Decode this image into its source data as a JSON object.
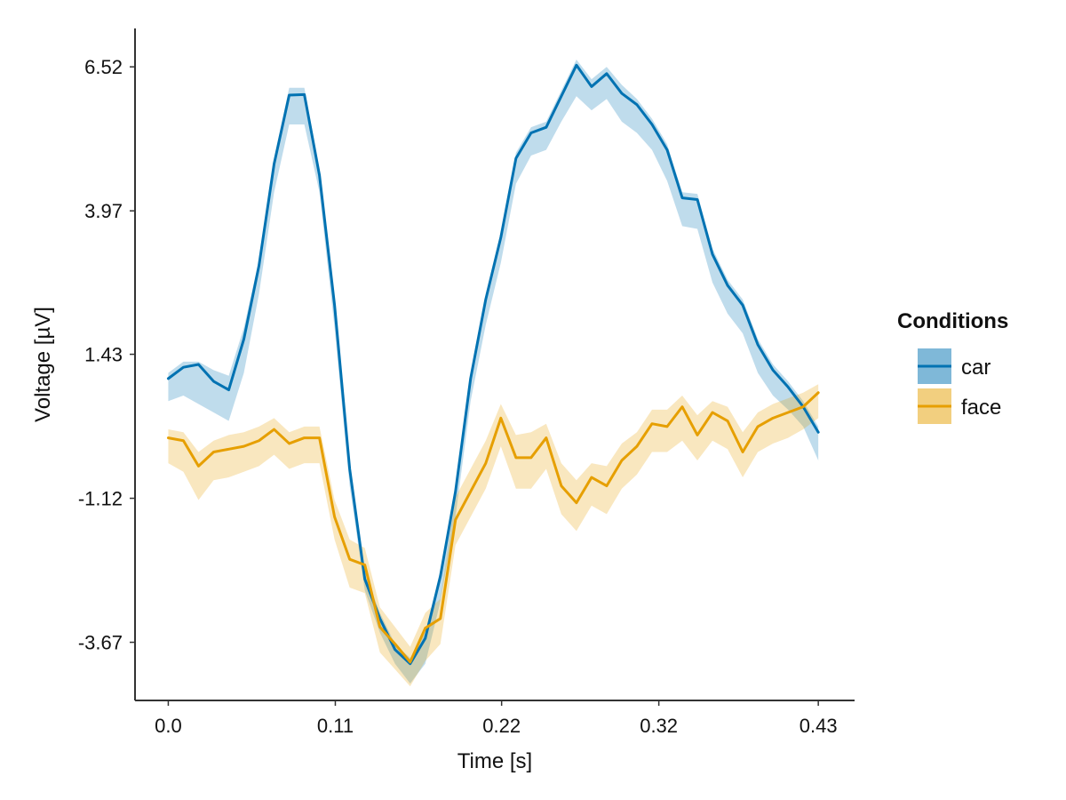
{
  "chart_data": {
    "type": "line",
    "title": "",
    "xlabel": "Time [s]",
    "ylabel": "Voltage [µV]",
    "xlim": [
      -0.022,
      0.454
    ],
    "ylim": [
      -4.7,
      7.2
    ],
    "x_ticks": [
      0.0,
      0.1105,
      0.2205,
      0.3245,
      0.43
    ],
    "x_tick_labels": [
      "0.0",
      "0.11",
      "0.22",
      "0.32",
      "0.43"
    ],
    "y_ticks": [
      6.52,
      3.97,
      1.43,
      -1.12,
      -3.67
    ],
    "y_tick_labels": [
      "6.52",
      "3.97",
      "1.43",
      "-1.12",
      "-3.67"
    ],
    "grid": false,
    "legend": {
      "title": "Conditions",
      "position": "right",
      "entries": [
        "car",
        "face"
      ]
    },
    "x": [
      0.0,
      0.01,
      0.02,
      0.03,
      0.04,
      0.05,
      0.06,
      0.07,
      0.08,
      0.09,
      0.1,
      0.11,
      0.12,
      0.13,
      0.14,
      0.15,
      0.16,
      0.17,
      0.18,
      0.19,
      0.2,
      0.21,
      0.22,
      0.23,
      0.24,
      0.25,
      0.26,
      0.27,
      0.28,
      0.29,
      0.3,
      0.31,
      0.32,
      0.33,
      0.34,
      0.35,
      0.36,
      0.37,
      0.38,
      0.39,
      0.4,
      0.41,
      0.42,
      0.43
    ],
    "series": [
      {
        "name": "car",
        "color": "#0072b2",
        "values": [
          1.0,
          1.2,
          1.25,
          0.95,
          0.8,
          1.7,
          3.0,
          4.8,
          6.02,
          6.03,
          4.6,
          2.3,
          -0.6,
          -2.55,
          -3.25,
          -3.8,
          -4.05,
          -3.6,
          -2.5,
          -1.0,
          1.0,
          2.4,
          3.5,
          4.9,
          5.35,
          5.45,
          6.0,
          6.55,
          6.17,
          6.4,
          6.05,
          5.85,
          5.5,
          5.05,
          4.2,
          4.17,
          3.2,
          2.65,
          2.3,
          1.6,
          1.15,
          0.85,
          0.5,
          0.05
        ],
        "band_upper": [
          1.1,
          1.3,
          1.3,
          1.15,
          1.05,
          1.9,
          3.1,
          4.9,
          6.15,
          6.15,
          4.7,
          2.4,
          -0.5,
          -2.45,
          -3.15,
          -3.7,
          -3.95,
          -3.5,
          -2.4,
          -0.9,
          1.1,
          2.5,
          3.6,
          5.0,
          5.45,
          5.55,
          6.1,
          6.65,
          6.3,
          6.52,
          6.2,
          5.95,
          5.6,
          5.15,
          4.3,
          4.27,
          3.3,
          2.75,
          2.4,
          1.7,
          1.25,
          0.95,
          0.6,
          0.15
        ],
        "band_lower": [
          0.6,
          0.7,
          0.55,
          0.4,
          0.25,
          1.1,
          2.5,
          4.3,
          5.5,
          5.5,
          4.3,
          1.9,
          -0.9,
          -2.75,
          -3.5,
          -4.05,
          -4.4,
          -4.05,
          -2.95,
          -1.45,
          0.6,
          1.95,
          3.05,
          4.45,
          4.95,
          5.05,
          5.55,
          6.0,
          5.75,
          5.95,
          5.55,
          5.35,
          5.05,
          4.5,
          3.7,
          3.65,
          2.7,
          2.15,
          1.8,
          1.1,
          0.7,
          0.45,
          0.15,
          -0.45
        ]
      },
      {
        "name": "face",
        "color": "#e69f00",
        "values": [
          -0.05,
          -0.1,
          -0.55,
          -0.3,
          -0.25,
          -0.2,
          -0.1,
          0.1,
          -0.15,
          -0.05,
          -0.05,
          -1.45,
          -2.2,
          -2.3,
          -3.4,
          -3.7,
          -4.02,
          -3.42,
          -3.25,
          -1.5,
          -1.0,
          -0.5,
          0.3,
          -0.4,
          -0.4,
          -0.05,
          -0.9,
          -1.2,
          -0.75,
          -0.9,
          -0.45,
          -0.2,
          0.2,
          0.15,
          0.5,
          0.0,
          0.4,
          0.25,
          -0.3,
          0.15,
          0.3,
          0.4,
          0.5,
          0.75
        ],
        "band_upper": [
          0.1,
          0.05,
          -0.3,
          -0.1,
          0.0,
          0.05,
          0.15,
          0.3,
          0.05,
          0.15,
          0.15,
          -1.15,
          -1.85,
          -2.0,
          -3.05,
          -3.4,
          -3.75,
          -3.15,
          -2.9,
          -1.1,
          -0.6,
          -0.1,
          0.55,
          0.0,
          0.05,
          0.2,
          -0.5,
          -0.8,
          -0.5,
          -0.55,
          -0.15,
          0.05,
          0.45,
          0.45,
          0.7,
          0.35,
          0.6,
          0.5,
          0.05,
          0.4,
          0.55,
          0.65,
          0.75,
          0.9
        ],
        "band_lower": [
          -0.5,
          -0.65,
          -1.15,
          -0.8,
          -0.75,
          -0.65,
          -0.55,
          -0.35,
          -0.6,
          -0.5,
          -0.5,
          -1.85,
          -2.7,
          -2.8,
          -3.85,
          -4.15,
          -4.45,
          -4.0,
          -3.7,
          -1.95,
          -1.45,
          -0.95,
          -0.2,
          -0.95,
          -0.95,
          -0.6,
          -1.4,
          -1.7,
          -1.25,
          -1.4,
          -0.95,
          -0.7,
          -0.3,
          -0.3,
          -0.1,
          -0.45,
          -0.1,
          -0.25,
          -0.75,
          -0.3,
          -0.15,
          -0.05,
          0.1,
          0.3
        ]
      }
    ]
  }
}
